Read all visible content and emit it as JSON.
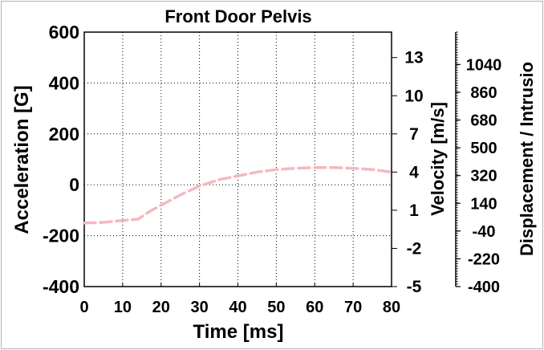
{
  "chart_data": {
    "type": "line",
    "title": "Front Door Pelvis",
    "xlabel": "Time [ms]",
    "ylabel": "Acceleration [G]",
    "y2label": "Velocity [m/s]",
    "y3label": "Displacement / Intrusio",
    "xlim": [
      0,
      80
    ],
    "ylim": [
      -400,
      600
    ],
    "y2lim": [
      -5,
      15
    ],
    "y3lim": [
      -400,
      1250
    ],
    "x_ticks": [
      "0",
      "10",
      "20",
      "30",
      "40",
      "50",
      "60",
      "70",
      "80"
    ],
    "y_ticks": [
      "-400",
      "-200",
      "0",
      "200",
      "400",
      "600"
    ],
    "y2_ticks": [
      "-5",
      "-2",
      "1",
      "4",
      "7",
      "10",
      "13"
    ],
    "y3_ticks": [
      "-400",
      "-220",
      "-40",
      "140",
      "320",
      "500",
      "680",
      "860",
      "1040"
    ],
    "grid": true,
    "series": [
      {
        "axis": "velocity",
        "color": "#f4b8c0",
        "style": "dashed",
        "x": [
          0,
          5,
          10,
          14,
          17,
          20,
          25,
          30,
          35,
          40,
          45,
          50,
          55,
          60,
          65,
          70,
          75,
          80
        ],
        "y": [
          0.0,
          0.05,
          0.2,
          0.3,
          0.9,
          1.4,
          2.2,
          2.9,
          3.4,
          3.7,
          4.0,
          4.2,
          4.3,
          4.35,
          4.35,
          4.3,
          4.2,
          4.0
        ]
      }
    ]
  }
}
